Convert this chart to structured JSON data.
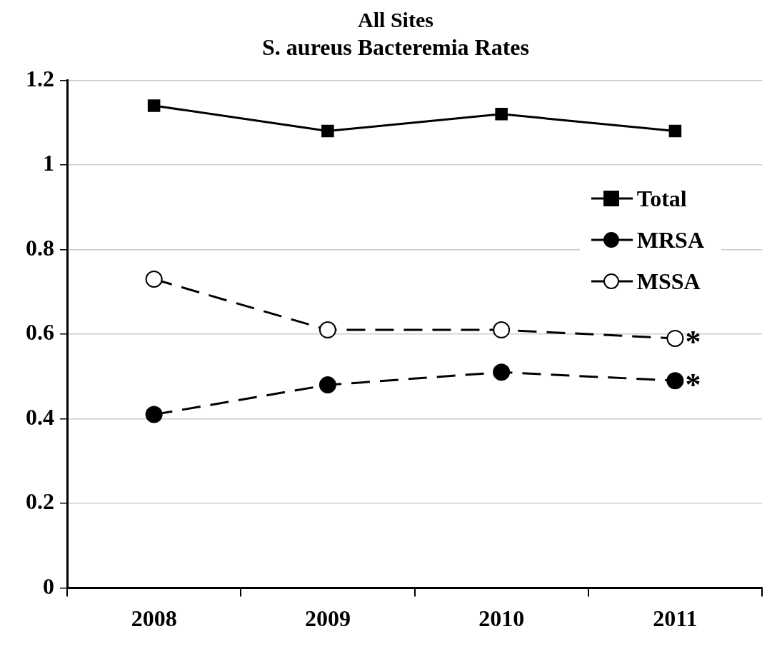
{
  "chart_data": {
    "type": "line",
    "title": "All Sites",
    "subtitle": "S. aureus Bacteremia Rates",
    "categories": [
      "2008",
      "2009",
      "2010",
      "2011"
    ],
    "series": [
      {
        "name": "Total",
        "color": "#000000",
        "values": [
          1.14,
          1.08,
          1.12,
          1.08
        ],
        "marker": "square",
        "line_style": "solid"
      },
      {
        "name": "MRSA",
        "color": "#000000",
        "values": [
          0.41,
          0.48,
          0.51,
          0.49
        ],
        "marker": "circle",
        "line_style": "dashed"
      },
      {
        "name": "MSSA",
        "color": "#ffffff",
        "values": [
          0.73,
          0.61,
          0.61,
          0.59
        ],
        "marker": "circle",
        "line_style": "dashed"
      }
    ],
    "ylim": [
      0,
      1.2
    ],
    "yticks": [
      0,
      0.2,
      0.4,
      0.6,
      0.8,
      1,
      1.2
    ],
    "grid": "y",
    "legend": "top right",
    "annotations": [
      {
        "text": "*",
        "x": "2011",
        "y": 0.59
      },
      {
        "text": "*",
        "x": "2011",
        "y": 0.49
      }
    ]
  }
}
